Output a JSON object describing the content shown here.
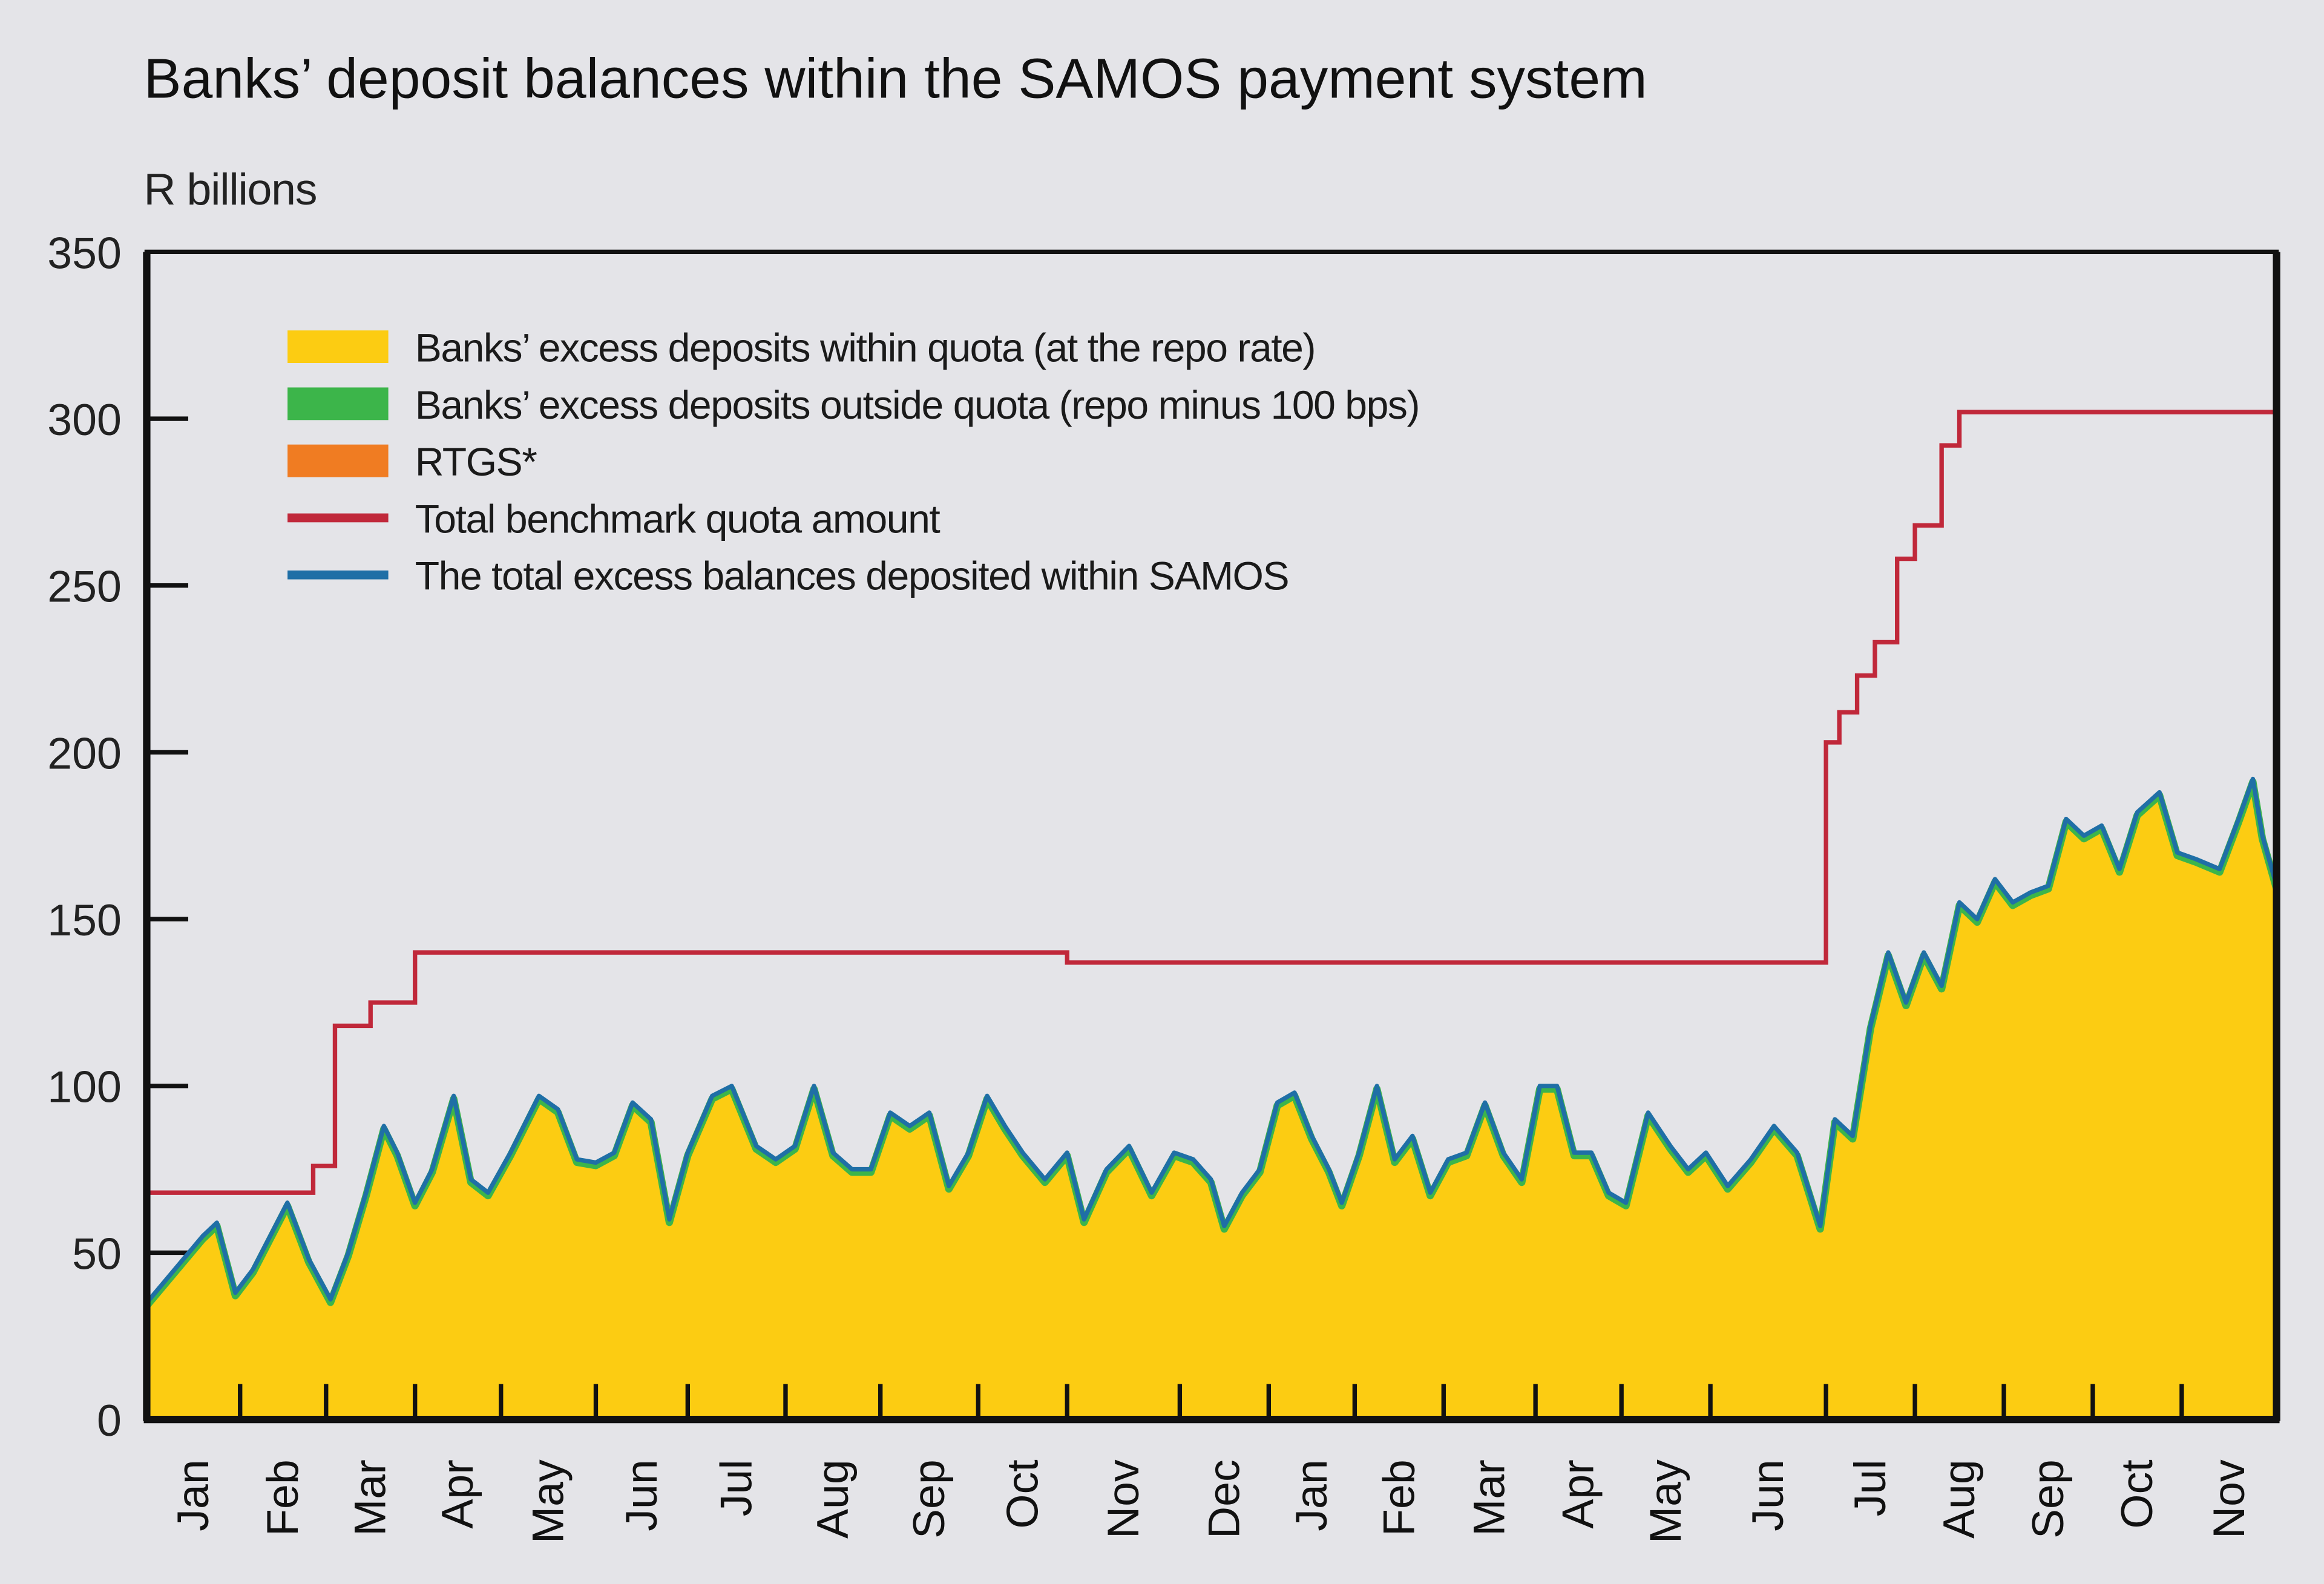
{
  "chart_data": {
    "type": "area",
    "title": "Banks’ deposit balances within the SAMOS payment system",
    "ylabel": "R billions",
    "xlabel": "",
    "ylim": [
      0,
      350
    ],
    "yticks": [
      0,
      50,
      100,
      150,
      200,
      250,
      300,
      350
    ],
    "grid": false,
    "legend_position": "upper-left inside plot",
    "categories": [
      "Jan",
      "Feb",
      "Mar",
      "Apr",
      "May",
      "Jun",
      "Jul",
      "Aug",
      "Sep",
      "Oct",
      "Nov",
      "Dec",
      "Jan",
      "Feb",
      "Mar",
      "Apr",
      "May",
      "Jun",
      "Jul",
      "Aug",
      "Sep",
      "Oct",
      "Nov"
    ],
    "legend": [
      {
        "label": "Banks’ excess deposits within quota (at the repo rate)",
        "color": "#fccc12",
        "kind": "area"
      },
      {
        "label": "Banks’ excess deposits outside quota (repo minus 100 bps)",
        "color": "#3cb54a",
        "kind": "area"
      },
      {
        "label": "RTGS*",
        "color": "#f07c22",
        "kind": "area"
      },
      {
        "label": "Total benchmark quota amount",
        "color": "#c0283a",
        "kind": "line"
      },
      {
        "label": "The total excess balances deposited within SAMOS",
        "color": "#1f6fa6",
        "kind": "line"
      }
    ],
    "series": [
      {
        "name": "Total benchmark quota amount",
        "kind": "step",
        "points": [
          {
            "x": 0.0,
            "y": 68
          },
          {
            "x": 1.85,
            "y": 68
          },
          {
            "x": 1.85,
            "y": 76
          },
          {
            "x": 2.1,
            "y": 76
          },
          {
            "x": 2.1,
            "y": 118
          },
          {
            "x": 2.5,
            "y": 118
          },
          {
            "x": 2.5,
            "y": 125
          },
          {
            "x": 3.0,
            "y": 125
          },
          {
            "x": 3.0,
            "y": 140
          },
          {
            "x": 10.0,
            "y": 140
          },
          {
            "x": 10.0,
            "y": 137
          },
          {
            "x": 18.0,
            "y": 137
          },
          {
            "x": 18.0,
            "y": 203
          },
          {
            "x": 18.15,
            "y": 203
          },
          {
            "x": 18.15,
            "y": 212
          },
          {
            "x": 18.35,
            "y": 212
          },
          {
            "x": 18.35,
            "y": 223
          },
          {
            "x": 18.55,
            "y": 223
          },
          {
            "x": 18.55,
            "y": 233
          },
          {
            "x": 18.8,
            "y": 233
          },
          {
            "x": 18.8,
            "y": 258
          },
          {
            "x": 19.0,
            "y": 258
          },
          {
            "x": 19.0,
            "y": 268
          },
          {
            "x": 19.3,
            "y": 268
          },
          {
            "x": 19.3,
            "y": 292
          },
          {
            "x": 19.5,
            "y": 292
          },
          {
            "x": 19.5,
            "y": 302
          },
          {
            "x": 23.0,
            "y": 302
          }
        ]
      },
      {
        "name": "The total excess balances deposited within SAMOS",
        "kind": "line",
        "points": [
          {
            "x": 0.0,
            "y": 35
          },
          {
            "x": 0.3,
            "y": 45
          },
          {
            "x": 0.6,
            "y": 55
          },
          {
            "x": 0.75,
            "y": 59
          },
          {
            "x": 0.95,
            "y": 38
          },
          {
            "x": 1.15,
            "y": 45
          },
          {
            "x": 1.35,
            "y": 55
          },
          {
            "x": 1.55,
            "y": 65
          },
          {
            "x": 1.8,
            "y": 48
          },
          {
            "x": 2.05,
            "y": 36
          },
          {
            "x": 2.25,
            "y": 50
          },
          {
            "x": 2.45,
            "y": 68
          },
          {
            "x": 2.65,
            "y": 88
          },
          {
            "x": 2.8,
            "y": 80
          },
          {
            "x": 3.0,
            "y": 65
          },
          {
            "x": 3.2,
            "y": 75
          },
          {
            "x": 3.45,
            "y": 97
          },
          {
            "x": 3.65,
            "y": 72
          },
          {
            "x": 3.85,
            "y": 68
          },
          {
            "x": 4.1,
            "y": 80
          },
          {
            "x": 4.4,
            "y": 97
          },
          {
            "x": 4.6,
            "y": 93
          },
          {
            "x": 4.8,
            "y": 78
          },
          {
            "x": 5.0,
            "y": 77
          },
          {
            "x": 5.2,
            "y": 80
          },
          {
            "x": 5.4,
            "y": 95
          },
          {
            "x": 5.6,
            "y": 90
          },
          {
            "x": 5.8,
            "y": 60
          },
          {
            "x": 6.0,
            "y": 80
          },
          {
            "x": 6.25,
            "y": 97
          },
          {
            "x": 6.45,
            "y": 100
          },
          {
            "x": 6.7,
            "y": 82
          },
          {
            "x": 6.9,
            "y": 78
          },
          {
            "x": 7.1,
            "y": 82
          },
          {
            "x": 7.3,
            "y": 100
          },
          {
            "x": 7.5,
            "y": 80
          },
          {
            "x": 7.7,
            "y": 75
          },
          {
            "x": 7.9,
            "y": 75
          },
          {
            "x": 8.1,
            "y": 92
          },
          {
            "x": 8.3,
            "y": 88
          },
          {
            "x": 8.5,
            "y": 92
          },
          {
            "x": 8.7,
            "y": 70
          },
          {
            "x": 8.9,
            "y": 80
          },
          {
            "x": 9.1,
            "y": 97
          },
          {
            "x": 9.3,
            "y": 88
          },
          {
            "x": 9.5,
            "y": 80
          },
          {
            "x": 9.75,
            "y": 72
          },
          {
            "x": 10.0,
            "y": 80
          },
          {
            "x": 10.15,
            "y": 60
          },
          {
            "x": 10.35,
            "y": 75
          },
          {
            "x": 10.55,
            "y": 82
          },
          {
            "x": 10.75,
            "y": 68
          },
          {
            "x": 10.95,
            "y": 80
          },
          {
            "x": 11.15,
            "y": 78
          },
          {
            "x": 11.35,
            "y": 72
          },
          {
            "x": 11.5,
            "y": 58
          },
          {
            "x": 11.7,
            "y": 68
          },
          {
            "x": 11.9,
            "y": 75
          },
          {
            "x": 12.1,
            "y": 95
          },
          {
            "x": 12.3,
            "y": 98
          },
          {
            "x": 12.5,
            "y": 85
          },
          {
            "x": 12.7,
            "y": 75
          },
          {
            "x": 12.85,
            "y": 65
          },
          {
            "x": 13.05,
            "y": 80
          },
          {
            "x": 13.25,
            "y": 100
          },
          {
            "x": 13.45,
            "y": 78
          },
          {
            "x": 13.65,
            "y": 85
          },
          {
            "x": 13.85,
            "y": 68
          },
          {
            "x": 14.05,
            "y": 78
          },
          {
            "x": 14.25,
            "y": 80
          },
          {
            "x": 14.45,
            "y": 95
          },
          {
            "x": 14.65,
            "y": 80
          },
          {
            "x": 14.85,
            "y": 72
          },
          {
            "x": 15.05,
            "y": 100
          },
          {
            "x": 15.25,
            "y": 100
          },
          {
            "x": 15.45,
            "y": 80
          },
          {
            "x": 15.65,
            "y": 80
          },
          {
            "x": 15.85,
            "y": 68
          },
          {
            "x": 16.05,
            "y": 65
          },
          {
            "x": 16.3,
            "y": 92
          },
          {
            "x": 16.55,
            "y": 82
          },
          {
            "x": 16.75,
            "y": 75
          },
          {
            "x": 16.95,
            "y": 80
          },
          {
            "x": 17.15,
            "y": 70
          },
          {
            "x": 17.35,
            "y": 78
          },
          {
            "x": 17.55,
            "y": 88
          },
          {
            "x": 17.75,
            "y": 80
          },
          {
            "x": 17.95,
            "y": 58
          },
          {
            "x": 18.1,
            "y": 90
          },
          {
            "x": 18.3,
            "y": 85
          },
          {
            "x": 18.5,
            "y": 118
          },
          {
            "x": 18.7,
            "y": 140
          },
          {
            "x": 18.9,
            "y": 125
          },
          {
            "x": 19.1,
            "y": 140
          },
          {
            "x": 19.3,
            "y": 130
          },
          {
            "x": 19.5,
            "y": 155
          },
          {
            "x": 19.7,
            "y": 150
          },
          {
            "x": 19.9,
            "y": 162
          },
          {
            "x": 20.1,
            "y": 155
          },
          {
            "x": 20.3,
            "y": 158
          },
          {
            "x": 20.5,
            "y": 160
          },
          {
            "x": 20.7,
            "y": 180
          },
          {
            "x": 20.9,
            "y": 175
          },
          {
            "x": 21.1,
            "y": 178
          },
          {
            "x": 21.3,
            "y": 165
          },
          {
            "x": 21.5,
            "y": 182
          },
          {
            "x": 21.75,
            "y": 188
          },
          {
            "x": 21.95,
            "y": 170
          },
          {
            "x": 22.15,
            "y": 168
          },
          {
            "x": 22.4,
            "y": 165
          },
          {
            "x": 22.6,
            "y": 180
          },
          {
            "x": 22.75,
            "y": 192
          },
          {
            "x": 22.85,
            "y": 175
          },
          {
            "x": 23.0,
            "y": 160
          }
        ]
      }
    ]
  }
}
